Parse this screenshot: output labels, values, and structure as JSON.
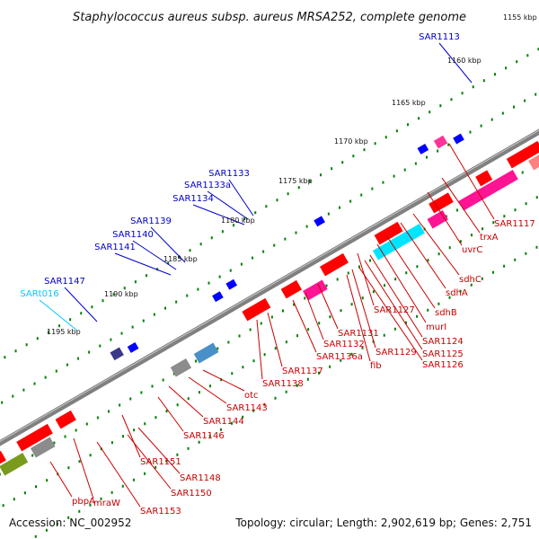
{
  "title": "Staphylococcus aureus subsp. aureus MRSA252, complete genome",
  "footer": {
    "accession": "Accession: NC_002952",
    "summary": "Topology: circular; Length: 2,902,619 bp; Genes: 2,751"
  },
  "colors": {
    "forward_gene": "#ff0000",
    "cds_blue": "#0000ff",
    "trna": "#00c8ff",
    "label_blue": "#0000c8",
    "label_red": "#c80000",
    "backbone": "#808080",
    "tick": "#008000"
  },
  "ruler_ticks": [
    "1155 kbp",
    "1160 kbp",
    "1165 kbp",
    "1170 kbp",
    "1175 kbp",
    "1180 kbp",
    "1185 kbp",
    "1190 kbp",
    "1195 kbp"
  ],
  "gene_labels_outer": [
    "SAR1113",
    "SAR1133",
    "SAR1133a",
    "SAR1134",
    "SAR1139",
    "SAR1140",
    "SAR1141",
    "SAR1147",
    "SARt016"
  ],
  "gene_labels_inner": [
    "SAR1117",
    "trxA",
    "uvrC",
    "sdhC",
    "sdhA",
    "sdhB",
    "murI",
    "SAR1127",
    "SAR1124",
    "SAR1125",
    "SAR1126",
    "SAR1129",
    "fib",
    "SAR1131",
    "SAR1132",
    "SAR1136a",
    "SAR1137",
    "SAR1138",
    "otc",
    "SAR1143",
    "SAR1144",
    "SAR1146",
    "SAR1151",
    "SAR1148",
    "SAR1150",
    "SAR1153",
    "mraW",
    "pbpA"
  ]
}
